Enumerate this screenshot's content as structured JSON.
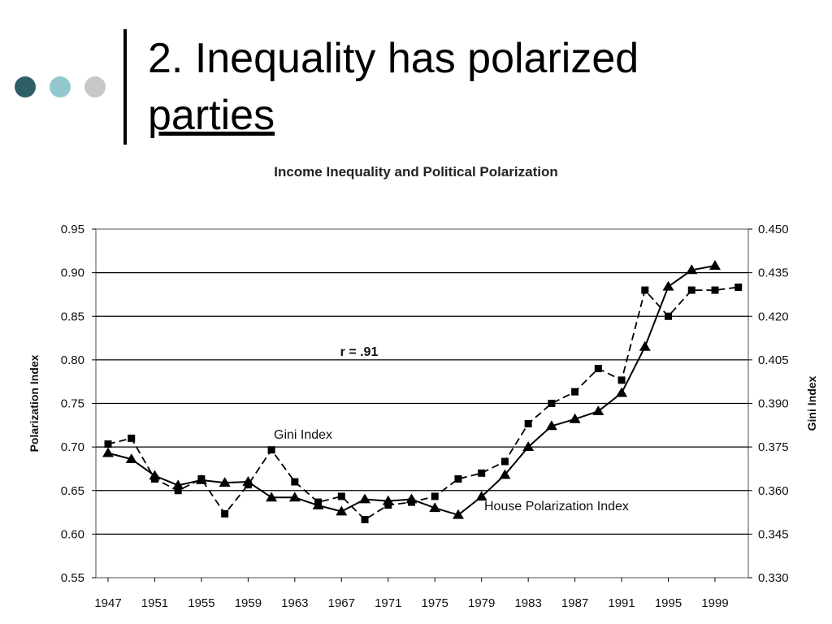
{
  "slide": {
    "title_line1": "2. Inequality has polarized",
    "title_line2": "parties",
    "bullet_colors": [
      "#2e5f66",
      "#93c9cd",
      "#c8c8c8"
    ]
  },
  "chart_data": {
    "type": "line",
    "title": "Income Inequality and Political Polarization",
    "ylabel": "Polarization Index",
    "y2label": "Gini Index",
    "xlabel": "",
    "xlim": [
      1946,
      2001
    ],
    "ylim": [
      0.55,
      0.95
    ],
    "y2lim": [
      0.33,
      0.45
    ],
    "x_ticks": [
      "1947",
      "1951",
      "1955",
      "1959",
      "1963",
      "1967",
      "1971",
      "1975",
      "1979",
      "1983",
      "1987",
      "1991",
      "1995",
      "1999"
    ],
    "y_ticks": [
      "0.55",
      "0.60",
      "0.65",
      "0.70",
      "0.75",
      "0.80",
      "0.85",
      "0.90",
      "0.95"
    ],
    "y2_ticks": [
      "0.330",
      "0.345",
      "0.360",
      "0.375",
      "0.390",
      "0.405",
      "0.420",
      "0.435",
      "0.450"
    ],
    "grid": true,
    "annotations": {
      "r": "r = .91",
      "gini_label": "Gini Index",
      "house_label": "House Polarization Index"
    },
    "series": [
      {
        "name": "House Polarization Index",
        "axis": "left",
        "marker": "triangle",
        "line": "solid",
        "x": [
          1947,
          1949,
          1951,
          1953,
          1955,
          1957,
          1959,
          1961,
          1963,
          1965,
          1967,
          1969,
          1971,
          1973,
          1975,
          1977,
          1979,
          1981,
          1983,
          1985,
          1987,
          1989,
          1991,
          1993,
          1995,
          1997,
          1999
        ],
        "y": [
          0.693,
          0.686,
          0.667,
          0.656,
          0.662,
          0.659,
          0.66,
          0.642,
          0.642,
          0.633,
          0.626,
          0.64,
          0.638,
          0.64,
          0.63,
          0.622,
          0.643,
          0.668,
          0.7,
          0.724,
          0.732,
          0.741,
          0.762,
          0.815,
          0.884,
          0.903,
          0.908
        ]
      },
      {
        "name": "Gini Index",
        "axis": "right",
        "marker": "square",
        "line": "dashed",
        "x": [
          1947,
          1949,
          1951,
          1953,
          1955,
          1957,
          1959,
          1961,
          1963,
          1965,
          1967,
          1969,
          1971,
          1973,
          1975,
          1977,
          1979,
          1981,
          1983,
          1985,
          1987,
          1989,
          1991,
          1993,
          1995,
          1997,
          1999,
          2001
        ],
        "y": [
          0.376,
          0.378,
          0.364,
          0.36,
          0.364,
          0.352,
          0.362,
          0.374,
          0.363,
          0.356,
          0.358,
          0.35,
          0.355,
          0.356,
          0.358,
          0.364,
          0.366,
          0.37,
          0.383,
          0.39,
          0.394,
          0.402,
          0.398,
          0.429,
          0.42,
          0.429,
          0.429,
          0.43
        ]
      }
    ]
  }
}
